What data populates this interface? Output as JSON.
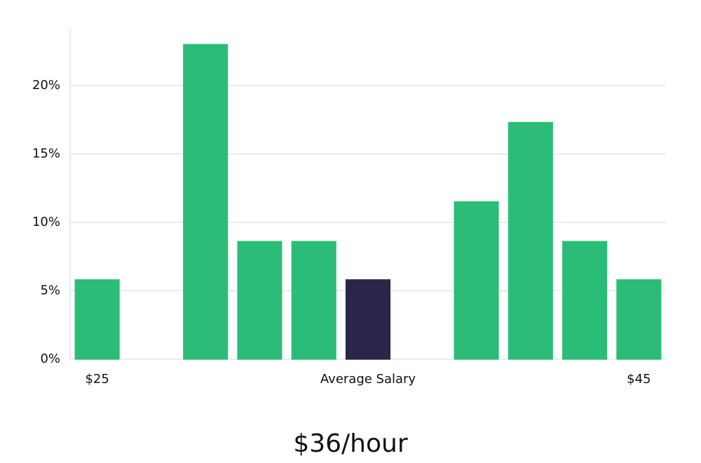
{
  "chart_data": {
    "type": "bar",
    "subtitle": "$36/hour",
    "categories": [
      "$25",
      null,
      null,
      null,
      null,
      "Average Salary",
      null,
      null,
      null,
      null,
      "$45"
    ],
    "values": [
      5.8,
      0,
      23.0,
      8.6,
      8.6,
      5.8,
      0,
      11.5,
      17.3,
      8.6,
      5.8
    ],
    "colors": [
      "#2bbd77",
      "#2bbd77",
      "#2bbd77",
      "#2bbd77",
      "#2bbd77",
      "#29264a",
      "#2bbd77",
      "#2bbd77",
      "#2bbd77",
      "#2bbd77",
      "#2bbd77"
    ],
    "ylim": [
      0,
      24.2
    ],
    "yticks": [
      {
        "value": 0,
        "label": "0%"
      },
      {
        "value": 5,
        "label": "5%"
      },
      {
        "value": 10,
        "label": "10%"
      },
      {
        "value": 15,
        "label": "15%"
      },
      {
        "value": 20,
        "label": "20%"
      }
    ],
    "grid": true
  }
}
